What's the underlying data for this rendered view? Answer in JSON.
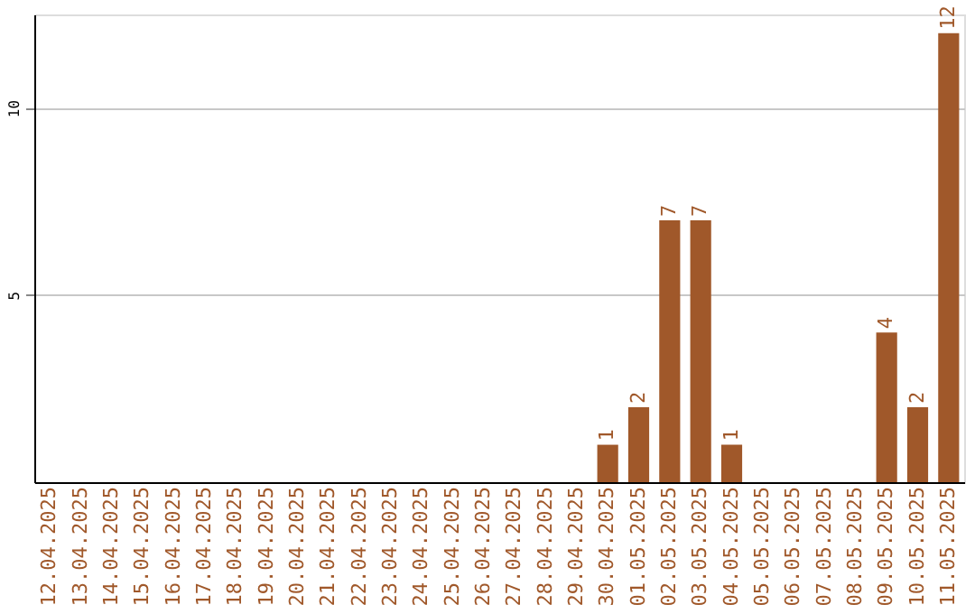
{
  "chart_data": {
    "type": "bar",
    "categories": [
      "12.04.2025",
      "13.04.2025",
      "14.04.2025",
      "15.04.2025",
      "16.04.2025",
      "17.04.2025",
      "18.04.2025",
      "19.04.2025",
      "20.04.2025",
      "21.04.2025",
      "22.04.2025",
      "23.04.2025",
      "24.04.2025",
      "25.04.2025",
      "26.04.2025",
      "27.04.2025",
      "28.04.2025",
      "29.04.2025",
      "30.04.2025",
      "01.05.2025",
      "02.05.2025",
      "03.05.2025",
      "04.05.2025",
      "05.05.2025",
      "06.05.2025",
      "07.05.2025",
      "08.05.2025",
      "09.05.2025",
      "10.05.2025",
      "11.05.2025"
    ],
    "values": [
      0,
      0,
      0,
      0,
      0,
      0,
      0,
      0,
      0,
      0,
      0,
      0,
      0,
      0,
      0,
      0,
      0,
      0,
      1,
      2,
      7,
      7,
      1,
      0,
      0,
      0,
      0,
      4,
      2,
      12
    ],
    "value_labels": [
      null,
      null,
      null,
      null,
      null,
      null,
      null,
      null,
      null,
      null,
      null,
      null,
      null,
      null,
      null,
      null,
      null,
      null,
      "1",
      "2",
      "7",
      "7",
      "1",
      null,
      null,
      null,
      null,
      "4",
      "2",
      "12"
    ],
    "color": "#a0582a",
    "ylim": [
      0,
      12.5
    ],
    "yticks": [
      5,
      10
    ],
    "grid": "y"
  }
}
